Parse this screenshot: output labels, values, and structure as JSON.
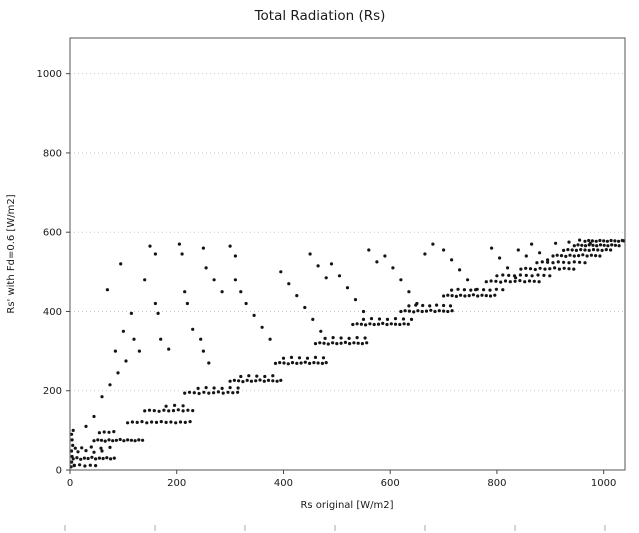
{
  "chart_data": {
    "type": "scatter",
    "title": "Total Radiation (Rs)",
    "xlabel": "Rs original [W/m2]",
    "ylabel": "Rs' with Fd=0.6 [W/m2]",
    "xlim": [
      0,
      1040
    ],
    "ylim": [
      0,
      1090
    ],
    "x_ticks": [
      0,
      200,
      400,
      600,
      800,
      1000
    ],
    "y_ticks": [
      0,
      200,
      400,
      600,
      800,
      1000
    ],
    "grid": "horizontal-dotted",
    "legend": "none",
    "colors": {
      "marker": "#141414",
      "axis": "#555555",
      "grid": "#c8c8c8",
      "tick": "#444444",
      "background": "#ffffff"
    },
    "points": [
      [
        2,
        8
      ],
      [
        3,
        20
      ],
      [
        4,
        34
      ],
      [
        3,
        48
      ],
      [
        5,
        62
      ],
      [
        4,
        76
      ],
      [
        3,
        90
      ],
      [
        6,
        100
      ],
      [
        8,
        12
      ],
      [
        10,
        55
      ],
      [
        6,
        28
      ],
      [
        13,
        31
      ],
      [
        20,
        27
      ],
      [
        27,
        30
      ],
      [
        34,
        29
      ],
      [
        41,
        32
      ],
      [
        48,
        28
      ],
      [
        55,
        30
      ],
      [
        62,
        29
      ],
      [
        69,
        31
      ],
      [
        76,
        28
      ],
      [
        83,
        30
      ],
      [
        8,
        11
      ],
      [
        18,
        13
      ],
      [
        28,
        10
      ],
      [
        38,
        12
      ],
      [
        48,
        11
      ],
      [
        15,
        46
      ],
      [
        30,
        49
      ],
      [
        45,
        45
      ],
      [
        60,
        48
      ],
      [
        22,
        56
      ],
      [
        40,
        58
      ],
      [
        58,
        55
      ],
      [
        75,
        57
      ],
      [
        45,
        74
      ],
      [
        52,
        76
      ],
      [
        59,
        75
      ],
      [
        66,
        73
      ],
      [
        73,
        76
      ],
      [
        80,
        74
      ],
      [
        87,
        75
      ],
      [
        94,
        77
      ],
      [
        101,
        74
      ],
      [
        108,
        76
      ],
      [
        115,
        75
      ],
      [
        122,
        74
      ],
      [
        129,
        76
      ],
      [
        136,
        75
      ],
      [
        55,
        94
      ],
      [
        64,
        96
      ],
      [
        73,
        95
      ],
      [
        82,
        97
      ],
      [
        108,
        119
      ],
      [
        117,
        121
      ],
      [
        126,
        120
      ],
      [
        135,
        122
      ],
      [
        144,
        119
      ],
      [
        153,
        121
      ],
      [
        162,
        120
      ],
      [
        171,
        122
      ],
      [
        180,
        120
      ],
      [
        189,
        121
      ],
      [
        198,
        119
      ],
      [
        207,
        121
      ],
      [
        216,
        120
      ],
      [
        225,
        122
      ],
      [
        140,
        149
      ],
      [
        149,
        151
      ],
      [
        158,
        150
      ],
      [
        167,
        148
      ],
      [
        176,
        151
      ],
      [
        185,
        149
      ],
      [
        194,
        150
      ],
      [
        203,
        152
      ],
      [
        212,
        149
      ],
      [
        221,
        151
      ],
      [
        230,
        150
      ],
      [
        180,
        161
      ],
      [
        196,
        163
      ],
      [
        212,
        162
      ],
      [
        215,
        194
      ],
      [
        224,
        196
      ],
      [
        233,
        195
      ],
      [
        242,
        193
      ],
      [
        251,
        196
      ],
      [
        260,
        194
      ],
      [
        269,
        195
      ],
      [
        278,
        197
      ],
      [
        287,
        194
      ],
      [
        296,
        196
      ],
      [
        305,
        195
      ],
      [
        314,
        196
      ],
      [
        240,
        206
      ],
      [
        255,
        208
      ],
      [
        270,
        207
      ],
      [
        285,
        206
      ],
      [
        300,
        208
      ],
      [
        315,
        207
      ],
      [
        300,
        224
      ],
      [
        308,
        226
      ],
      [
        316,
        225
      ],
      [
        324,
        223
      ],
      [
        332,
        226
      ],
      [
        340,
        224
      ],
      [
        348,
        225
      ],
      [
        356,
        227
      ],
      [
        364,
        224
      ],
      [
        372,
        226
      ],
      [
        380,
        225
      ],
      [
        388,
        224
      ],
      [
        395,
        226
      ],
      [
        320,
        236
      ],
      [
        335,
        238
      ],
      [
        350,
        237
      ],
      [
        365,
        236
      ],
      [
        380,
        238
      ],
      [
        385,
        269
      ],
      [
        393,
        271
      ],
      [
        401,
        270
      ],
      [
        409,
        268
      ],
      [
        417,
        271
      ],
      [
        425,
        269
      ],
      [
        433,
        270
      ],
      [
        441,
        272
      ],
      [
        449,
        269
      ],
      [
        457,
        271
      ],
      [
        465,
        270
      ],
      [
        473,
        269
      ],
      [
        480,
        271
      ],
      [
        400,
        282
      ],
      [
        415,
        284
      ],
      [
        430,
        283
      ],
      [
        445,
        282
      ],
      [
        460,
        284
      ],
      [
        475,
        283
      ],
      [
        460,
        319
      ],
      [
        468,
        321
      ],
      [
        476,
        320
      ],
      [
        484,
        318
      ],
      [
        492,
        321
      ],
      [
        500,
        319
      ],
      [
        508,
        320
      ],
      [
        516,
        322
      ],
      [
        524,
        319
      ],
      [
        532,
        321
      ],
      [
        540,
        320
      ],
      [
        548,
        319
      ],
      [
        556,
        321
      ],
      [
        478,
        332
      ],
      [
        493,
        334
      ],
      [
        508,
        333
      ],
      [
        523,
        332
      ],
      [
        538,
        334
      ],
      [
        553,
        333
      ],
      [
        530,
        367
      ],
      [
        538,
        369
      ],
      [
        546,
        368
      ],
      [
        554,
        366
      ],
      [
        562,
        369
      ],
      [
        570,
        367
      ],
      [
        578,
        368
      ],
      [
        586,
        370
      ],
      [
        594,
        367
      ],
      [
        602,
        369
      ],
      [
        610,
        368
      ],
      [
        618,
        367
      ],
      [
        626,
        369
      ],
      [
        634,
        368
      ],
      [
        550,
        380
      ],
      [
        565,
        382
      ],
      [
        580,
        381
      ],
      [
        595,
        380
      ],
      [
        610,
        382
      ],
      [
        625,
        381
      ],
      [
        640,
        380
      ],
      [
        620,
        400
      ],
      [
        628,
        402
      ],
      [
        636,
        401
      ],
      [
        644,
        399
      ],
      [
        652,
        402
      ],
      [
        660,
        400
      ],
      [
        668,
        401
      ],
      [
        676,
        403
      ],
      [
        684,
        400
      ],
      [
        692,
        402
      ],
      [
        700,
        401
      ],
      [
        708,
        400
      ],
      [
        716,
        402
      ],
      [
        635,
        414
      ],
      [
        648,
        416
      ],
      [
        661,
        415
      ],
      [
        674,
        414
      ],
      [
        687,
        416
      ],
      [
        700,
        415
      ],
      [
        713,
        414
      ],
      [
        700,
        439
      ],
      [
        708,
        441
      ],
      [
        716,
        440
      ],
      [
        724,
        438
      ],
      [
        732,
        441
      ],
      [
        740,
        439
      ],
      [
        748,
        440
      ],
      [
        756,
        442
      ],
      [
        764,
        439
      ],
      [
        772,
        441
      ],
      [
        780,
        440
      ],
      [
        788,
        439
      ],
      [
        796,
        441
      ],
      [
        715,
        454
      ],
      [
        727,
        456
      ],
      [
        739,
        455
      ],
      [
        751,
        454
      ],
      [
        763,
        456
      ],
      [
        775,
        455
      ],
      [
        787,
        454
      ],
      [
        799,
        456
      ],
      [
        811,
        455
      ],
      [
        780,
        475
      ],
      [
        789,
        477
      ],
      [
        798,
        476
      ],
      [
        807,
        474
      ],
      [
        816,
        477
      ],
      [
        825,
        475
      ],
      [
        834,
        476
      ],
      [
        843,
        478
      ],
      [
        852,
        475
      ],
      [
        861,
        477
      ],
      [
        870,
        476
      ],
      [
        879,
        475
      ],
      [
        800,
        490
      ],
      [
        811,
        492
      ],
      [
        822,
        491
      ],
      [
        833,
        490
      ],
      [
        844,
        492
      ],
      [
        855,
        491
      ],
      [
        866,
        490
      ],
      [
        877,
        492
      ],
      [
        888,
        491
      ],
      [
        899,
        490
      ],
      [
        845,
        507
      ],
      [
        854,
        509
      ],
      [
        863,
        508
      ],
      [
        872,
        506
      ],
      [
        881,
        509
      ],
      [
        890,
        507
      ],
      [
        899,
        508
      ],
      [
        908,
        510
      ],
      [
        917,
        507
      ],
      [
        926,
        509
      ],
      [
        935,
        508
      ],
      [
        944,
        507
      ],
      [
        875,
        523
      ],
      [
        885,
        525
      ],
      [
        895,
        524
      ],
      [
        905,
        523
      ],
      [
        915,
        525
      ],
      [
        925,
        524
      ],
      [
        935,
        523
      ],
      [
        945,
        525
      ],
      [
        955,
        524
      ],
      [
        965,
        523
      ],
      [
        905,
        540
      ],
      [
        913,
        542
      ],
      [
        921,
        541
      ],
      [
        929,
        539
      ],
      [
        937,
        542
      ],
      [
        945,
        540
      ],
      [
        953,
        541
      ],
      [
        961,
        543
      ],
      [
        969,
        540
      ],
      [
        977,
        542
      ],
      [
        985,
        541
      ],
      [
        993,
        540
      ],
      [
        925,
        554
      ],
      [
        933,
        556
      ],
      [
        941,
        555
      ],
      [
        949,
        554
      ],
      [
        957,
        556
      ],
      [
        965,
        555
      ],
      [
        973,
        554
      ],
      [
        981,
        556
      ],
      [
        989,
        555
      ],
      [
        997,
        554
      ],
      [
        1005,
        556
      ],
      [
        1013,
        555
      ],
      [
        945,
        566
      ],
      [
        952,
        568
      ],
      [
        959,
        567
      ],
      [
        966,
        566
      ],
      [
        973,
        568
      ],
      [
        980,
        567
      ],
      [
        987,
        566
      ],
      [
        994,
        568
      ],
      [
        1001,
        567
      ],
      [
        1008,
        566
      ],
      [
        1015,
        568
      ],
      [
        1022,
        567
      ],
      [
        1029,
        566
      ],
      [
        965,
        577
      ],
      [
        972,
        579
      ],
      [
        979,
        578
      ],
      [
        986,
        577
      ],
      [
        993,
        579
      ],
      [
        1000,
        578
      ],
      [
        1007,
        577
      ],
      [
        1014,
        579
      ],
      [
        1021,
        578
      ],
      [
        1028,
        577
      ],
      [
        1035,
        579
      ],
      [
        1038,
        578
      ],
      [
        150,
        565
      ],
      [
        160,
        545
      ],
      [
        205,
        570
      ],
      [
        210,
        545
      ],
      [
        300,
        565
      ],
      [
        310,
        540
      ],
      [
        215,
        450
      ],
      [
        220,
        420
      ],
      [
        160,
        420
      ],
      [
        165,
        395
      ],
      [
        120,
        330
      ],
      [
        130,
        300
      ],
      [
        105,
        275
      ],
      [
        90,
        245
      ],
      [
        75,
        215
      ],
      [
        60,
        185
      ],
      [
        170,
        330
      ],
      [
        185,
        305
      ],
      [
        230,
        355
      ],
      [
        245,
        330
      ],
      [
        250,
        300
      ],
      [
        260,
        270
      ],
      [
        310,
        480
      ],
      [
        320,
        450
      ],
      [
        330,
        420
      ],
      [
        345,
        390
      ],
      [
        360,
        360
      ],
      [
        375,
        330
      ],
      [
        395,
        500
      ],
      [
        410,
        470
      ],
      [
        425,
        440
      ],
      [
        440,
        410
      ],
      [
        455,
        380
      ],
      [
        470,
        350
      ],
      [
        490,
        520
      ],
      [
        505,
        490
      ],
      [
        520,
        460
      ],
      [
        535,
        430
      ],
      [
        550,
        400
      ],
      [
        590,
        540
      ],
      [
        605,
        510
      ],
      [
        620,
        480
      ],
      [
        635,
        450
      ],
      [
        650,
        420
      ],
      [
        700,
        555
      ],
      [
        715,
        530
      ],
      [
        730,
        505
      ],
      [
        745,
        480
      ],
      [
        760,
        455
      ],
      [
        790,
        560
      ],
      [
        805,
        535
      ],
      [
        820,
        510
      ],
      [
        835,
        485
      ],
      [
        865,
        570
      ],
      [
        880,
        548
      ],
      [
        895,
        530
      ],
      [
        935,
        575
      ],
      [
        955,
        580
      ],
      [
        975,
        572
      ],
      [
        70,
        455
      ],
      [
        95,
        520
      ],
      [
        140,
        480
      ],
      [
        250,
        560
      ],
      [
        255,
        510
      ],
      [
        270,
        480
      ],
      [
        285,
        450
      ],
      [
        450,
        545
      ],
      [
        465,
        515
      ],
      [
        480,
        485
      ],
      [
        560,
        555
      ],
      [
        575,
        525
      ],
      [
        680,
        570
      ],
      [
        665,
        545
      ],
      [
        840,
        555
      ],
      [
        855,
        540
      ],
      [
        910,
        572
      ],
      [
        85,
        300
      ],
      [
        100,
        350
      ],
      [
        115,
        395
      ],
      [
        45,
        135
      ],
      [
        30,
        110
      ]
    ]
  }
}
